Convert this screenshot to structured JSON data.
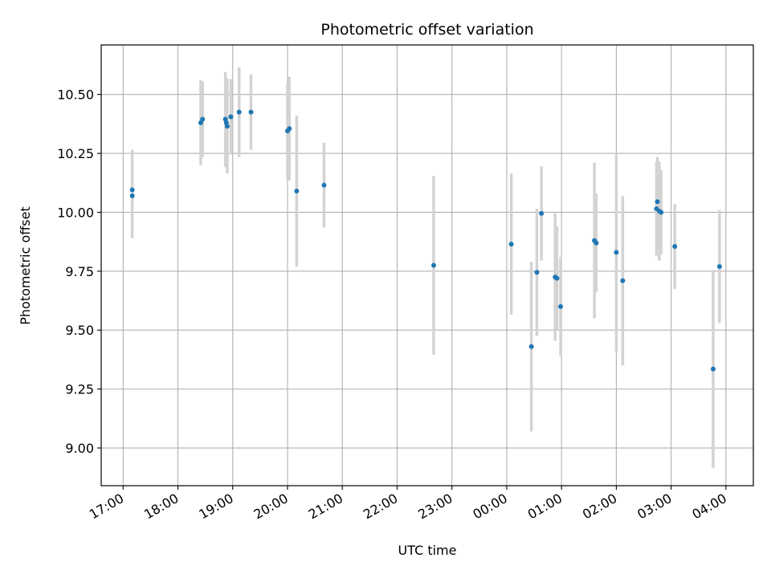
{
  "chart_data": {
    "type": "scatter",
    "title": "Photometric offset variation",
    "xlabel": "UTC time",
    "ylabel": "Photometric offset",
    "grid": true,
    "x_range": [
      "16:36",
      "04:30"
    ],
    "ylim": [
      8.84,
      10.71
    ],
    "x_ticks": [
      "17:00",
      "18:00",
      "19:00",
      "20:00",
      "21:00",
      "22:00",
      "23:00",
      "00:00",
      "01:00",
      "02:00",
      "03:00",
      "04:00"
    ],
    "y_ticks": [
      "9.00",
      "9.25",
      "9.50",
      "9.75",
      "10.00",
      "10.25",
      "10.50"
    ],
    "colors": {
      "points": "#1f77b4",
      "errorbars": "#d3d3d3",
      "grid": "#b0b0b0"
    },
    "series": [
      {
        "x": [
          "17:10",
          "17:10",
          "18:25",
          "18:27",
          "18:52",
          "18:53",
          "18:54",
          "18:58",
          "19:07",
          "19:20",
          "20:00",
          "20:02",
          "20:10",
          "20:40",
          "22:40",
          "00:05",
          "00:27",
          "00:33",
          "00:38",
          "00:53",
          "00:55",
          "00:59",
          "01:36",
          "01:38",
          "02:00",
          "02:07",
          "02:44",
          "02:45",
          "02:47",
          "02:49",
          "03:04",
          "03:46",
          "03:53"
        ],
        "y": [
          10.095,
          10.07,
          10.38,
          10.395,
          10.395,
          10.38,
          10.365,
          10.405,
          10.425,
          10.425,
          10.345,
          10.355,
          10.09,
          10.115,
          9.775,
          9.865,
          9.43,
          9.745,
          9.995,
          9.725,
          9.72,
          9.6,
          9.88,
          9.87,
          9.83,
          9.71,
          10.015,
          10.045,
          10.005,
          10.0,
          9.855,
          9.335,
          9.77
        ],
        "yerr": [
          0.17,
          0.18,
          0.18,
          0.16,
          0.2,
          0.19,
          0.2,
          0.16,
          0.19,
          0.16,
          0.2,
          0.22,
          0.32,
          0.18,
          0.38,
          0.3,
          0.36,
          0.27,
          0.2,
          0.27,
          0.22,
          0.21,
          0.33,
          0.21,
          0.42,
          0.36,
          0.2,
          0.19,
          0.21,
          0.18,
          0.18,
          0.42,
          0.24
        ]
      }
    ]
  }
}
